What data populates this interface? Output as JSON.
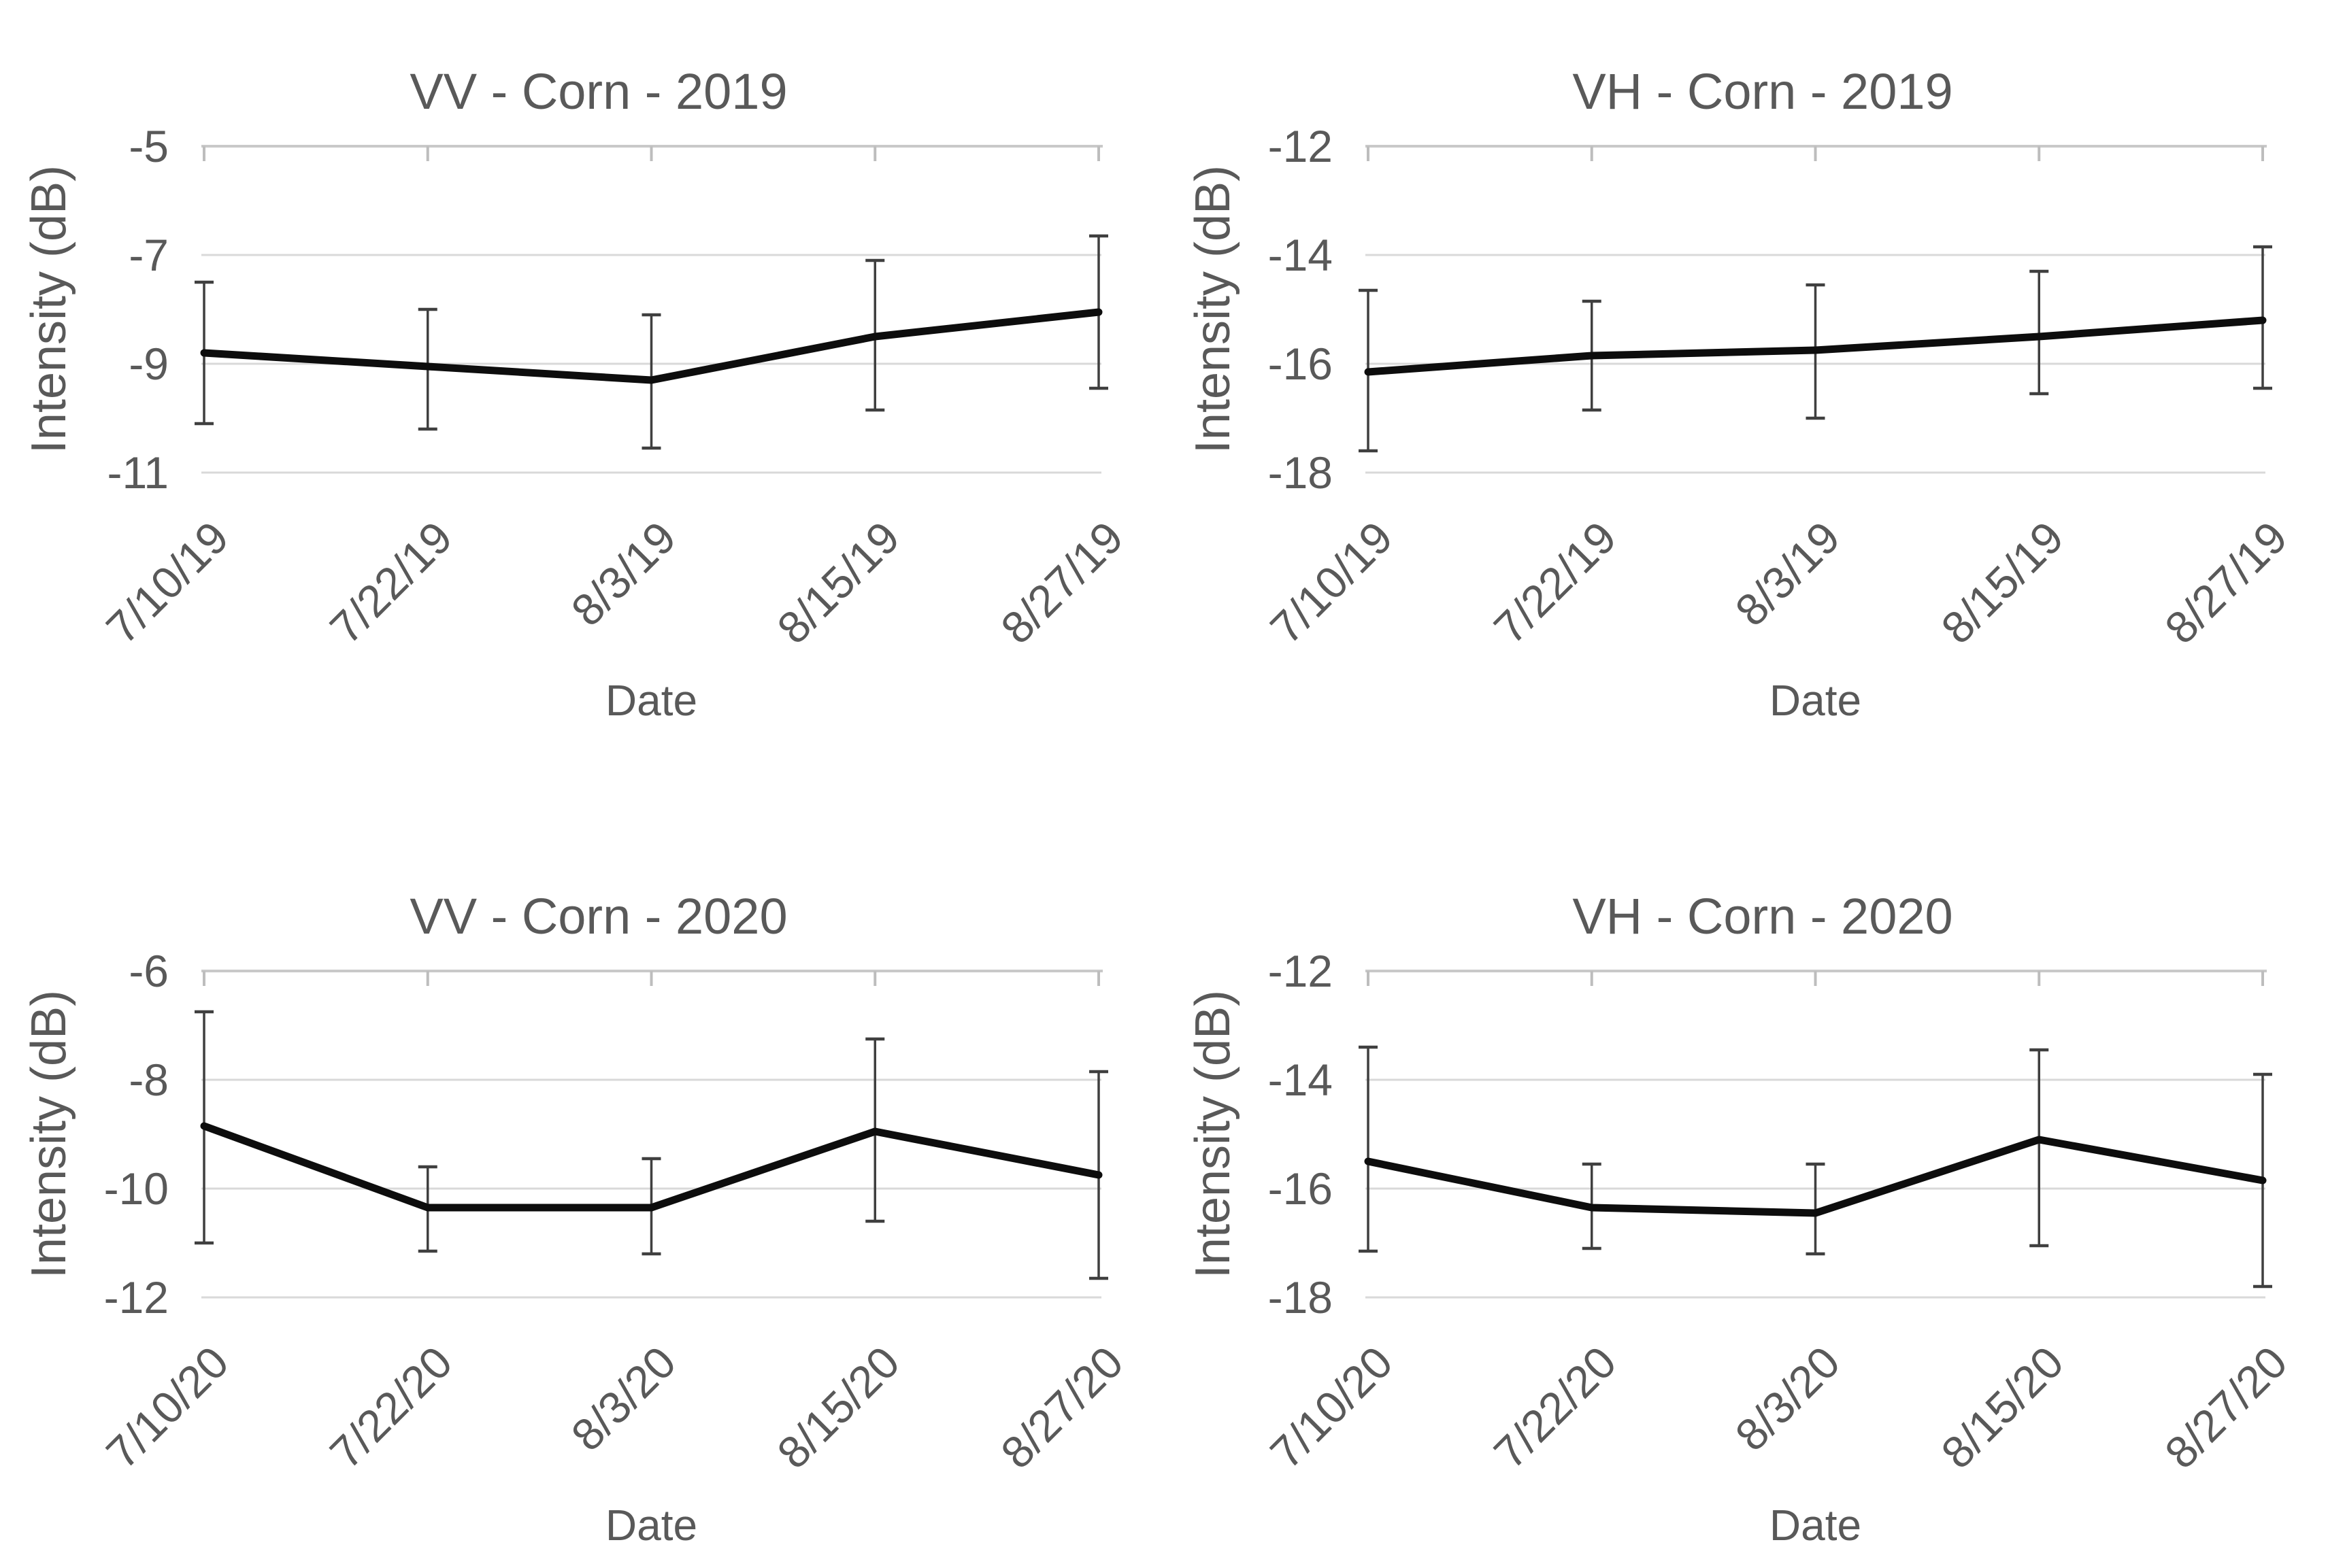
{
  "figure": {
    "background": "#ffffff",
    "text_color": "#595959",
    "gridline_color": "#d9d9d9",
    "axis_line_color": "#c9c9c9",
    "tick_mark_color": "#bdbdbd",
    "series_line_color": "#0d0d0d",
    "error_bar_color": "#3f3f3f"
  },
  "chart_data": [
    {
      "type": "line",
      "title": "VV - Corn - 2019",
      "xlabel": "Date",
      "ylabel": "Intensity (dB)",
      "categories": [
        "7/10/19",
        "7/22/19",
        "8/3/19",
        "8/15/19",
        "8/27/19"
      ],
      "yticks": [
        -5,
        -7,
        -9,
        -11
      ],
      "ylim": [
        -11,
        -5
      ],
      "grid": true,
      "legend": false,
      "series": [
        {
          "values": [
            -8.8,
            -9.05,
            -9.3,
            -8.5,
            -8.05
          ],
          "error_upper": [
            -7.5,
            -8.0,
            -8.1,
            -7.1,
            -6.65
          ],
          "error_lower": [
            -10.1,
            -10.2,
            -10.55,
            -9.85,
            -9.45
          ]
        }
      ]
    },
    {
      "type": "line",
      "title": "VH - Corn - 2019",
      "xlabel": "Date",
      "ylabel": "Intensity (dB)",
      "categories": [
        "7/10/19",
        "7/22/19",
        "8/3/19",
        "8/15/19",
        "8/27/19"
      ],
      "yticks": [
        -12,
        -14,
        -16,
        -18
      ],
      "ylim": [
        -18,
        -12
      ],
      "grid": true,
      "legend": false,
      "series": [
        {
          "values": [
            -16.15,
            -15.85,
            -15.75,
            -15.5,
            -15.2
          ],
          "error_upper": [
            -14.65,
            -14.85,
            -14.55,
            -14.3,
            -13.85
          ],
          "error_lower": [
            -17.6,
            -16.85,
            -17.0,
            -16.55,
            -16.45
          ]
        }
      ]
    },
    {
      "type": "line",
      "title": "VV - Corn - 2020",
      "xlabel": "Date",
      "ylabel": "Intensity (dB)",
      "categories": [
        "7/10/20",
        "7/22/20",
        "8/3/20",
        "8/15/20",
        "8/27/20"
      ],
      "yticks": [
        -6,
        -8,
        -10,
        -12
      ],
      "ylim": [
        -12,
        -6
      ],
      "grid": true,
      "legend": false,
      "series": [
        {
          "values": [
            -8.85,
            -10.35,
            -10.35,
            -8.95,
            -9.75
          ],
          "error_upper": [
            -6.75,
            -9.6,
            -9.45,
            -7.25,
            -7.85
          ],
          "error_lower": [
            -11.0,
            -11.15,
            -11.2,
            -10.6,
            -11.65
          ]
        }
      ]
    },
    {
      "type": "line",
      "title": "VH - Corn - 2020",
      "xlabel": "Date",
      "ylabel": "Intensity (dB)",
      "categories": [
        "7/10/20",
        "7/22/20",
        "8/3/20",
        "8/15/20",
        "8/27/20"
      ],
      "yticks": [
        -12,
        -14,
        -16,
        -18
      ],
      "ylim": [
        -18,
        -12
      ],
      "grid": true,
      "legend": false,
      "series": [
        {
          "values": [
            -15.5,
            -16.35,
            -16.45,
            -15.1,
            -15.85
          ],
          "error_upper": [
            -13.4,
            -15.55,
            -15.55,
            -13.45,
            -13.9
          ],
          "error_lower": [
            -17.15,
            -17.1,
            -17.2,
            -17.05,
            -17.8
          ]
        }
      ]
    }
  ]
}
